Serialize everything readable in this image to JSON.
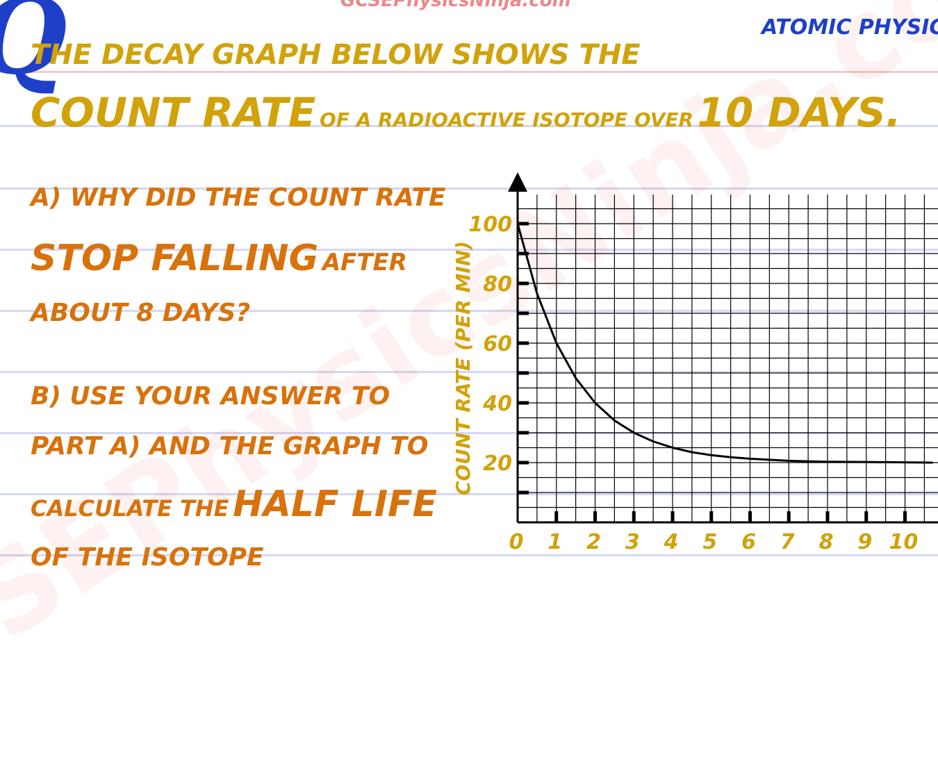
{
  "header": {
    "site_partial": "GCSEPhysicsNinja.com",
    "topic": "ATOMIC PHYSICS",
    "question_mark": "Q",
    "watermark": "GCSEPhysicsNinja.com"
  },
  "question": {
    "intro_line1": "THE DECAY GRAPH BELOW SHOWS THE",
    "intro_big1": "COUNT RATE",
    "intro_small": "OF A RADIOACTIVE ISOTOPE OVER",
    "intro_big2": "10 DAYS.",
    "part_a_line1": "A) WHY DID THE COUNT RATE",
    "part_a_big": "STOP FALLING",
    "part_a_after": "AFTER",
    "part_a_line3": "ABOUT 8 DAYS?",
    "part_b_line1": "B) USE YOUR ANSWER TO",
    "part_b_line2": "PART A) AND THE GRAPH TO",
    "part_b_line3_small": "CALCULATE THE",
    "part_b_big": "HALF LIFE",
    "part_b_line4": "OF THE ISOTOPE"
  },
  "colors": {
    "gold": "#d1a20a",
    "orange": "#d8720c",
    "blue": "#1e40c8",
    "rule": "#d4d8f2",
    "grid": "#000000"
  },
  "chart_data": {
    "type": "line",
    "title": "",
    "xlabel": "",
    "ylabel": "COUNT RATE (PER MIN)",
    "xlim": [
      0,
      10.7
    ],
    "ylim": [
      0,
      118
    ],
    "x_ticks": [
      "0",
      "1",
      "2",
      "3",
      "4",
      "5",
      "6",
      "7",
      "8",
      "9",
      "10"
    ],
    "y_ticks": [
      "20",
      "40",
      "60",
      "80",
      "100"
    ],
    "grid": true,
    "series": [
      {
        "x": [
          0,
          0.5,
          1,
          1.5,
          2,
          2.5,
          3,
          3.5,
          4,
          4.5,
          5,
          5.5,
          6,
          7,
          8,
          9,
          10,
          10.7
        ],
        "y": [
          100,
          76.6,
          60,
          48.3,
          40,
          34.1,
          30,
          27.1,
          25,
          23.5,
          22.5,
          21.8,
          21.3,
          20.6,
          20.3,
          20.2,
          20.1,
          20
        ]
      }
    ]
  }
}
